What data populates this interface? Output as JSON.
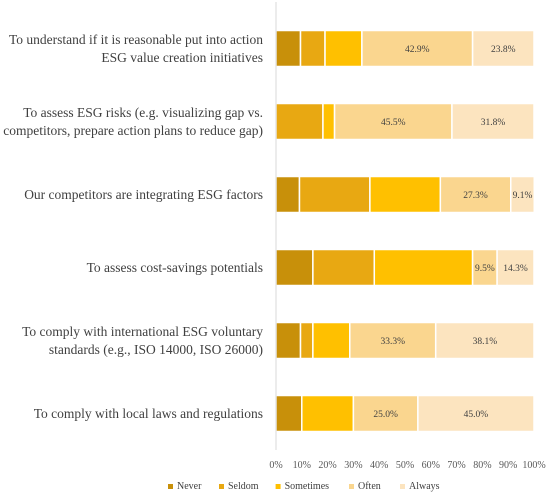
{
  "chart_data": {
    "type": "bar",
    "orientation": "horizontal",
    "stacked": "percent",
    "categories": [
      [
        "To understand if it is reasonable put into action",
        "ESG value creation initiatives"
      ],
      [
        "To assess ESG risks (e.g. visualizing gap vs.",
        "competitors, prepare action plans to reduce gap)"
      ],
      [
        "Our competitors are integrating ESG factors"
      ],
      [
        "To assess cost-savings potentials"
      ],
      [
        "To comply with international ESG voluntary",
        "standards (e.g., ISO 14000, ISO 26000)"
      ],
      [
        "To comply with local laws and regulations"
      ]
    ],
    "series": [
      {
        "name": "Never",
        "color": "#C8900A",
        "values": [
          9.5,
          0,
          9.1,
          14.3,
          9.5,
          10.0
        ]
      },
      {
        "name": "Seldom",
        "color": "#E8A812",
        "values": [
          9.5,
          18.2,
          27.3,
          23.8,
          4.8,
          0
        ]
      },
      {
        "name": "Sometimes",
        "color": "#FFC000",
        "values": [
          14.3,
          4.5,
          27.3,
          38.1,
          14.3,
          20.0
        ]
      },
      {
        "name": "Often",
        "color": "#FAD68F",
        "values": [
          42.9,
          45.5,
          27.3,
          9.5,
          33.3,
          25.0
        ]
      },
      {
        "name": "Always",
        "color": "#FCE4BF",
        "values": [
          23.8,
          31.8,
          9.1,
          14.3,
          38.1,
          45.0
        ]
      }
    ],
    "data_labels": [
      [
        null,
        null,
        null,
        "42.9%",
        "23.8%"
      ],
      [
        null,
        null,
        null,
        "45.5%",
        "31.8%"
      ],
      [
        null,
        null,
        null,
        "27.3%",
        "9.1%"
      ],
      [
        null,
        null,
        null,
        "9.5%",
        "14.3%"
      ],
      [
        null,
        null,
        null,
        "33.3%",
        "38.1%"
      ],
      [
        null,
        null,
        null,
        "25.0%",
        "45.0%"
      ]
    ],
    "x_ticks": [
      "0%",
      "10%",
      "20%",
      "30%",
      "40%",
      "50%",
      "60%",
      "70%",
      "80%",
      "90%",
      "100%"
    ],
    "xlim": [
      0,
      100
    ],
    "legend": "bottom",
    "grid": false
  }
}
